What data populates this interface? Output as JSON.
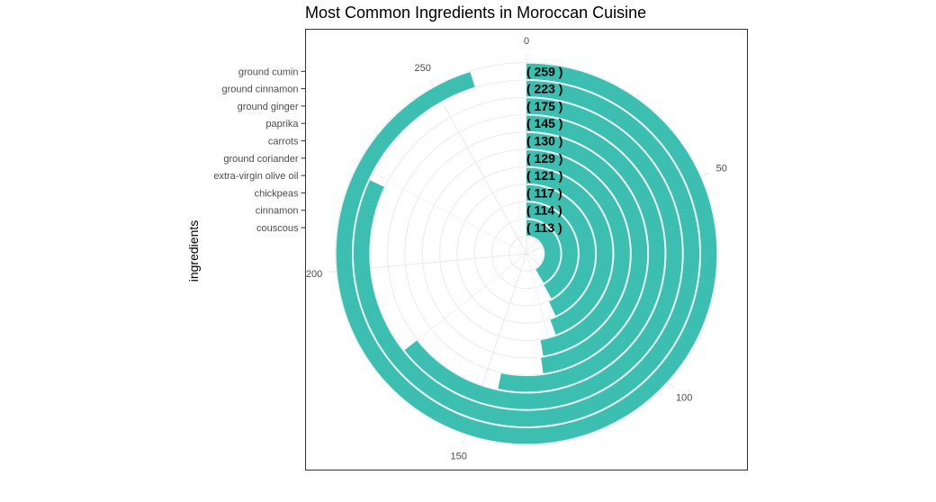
{
  "chart_data": {
    "type": "bar",
    "coord": "polar",
    "title": "Most Common Ingredients in Moroccan Cuisine",
    "xlabel": "",
    "ylabel": "ingredients",
    "categories": [
      "ground cumin",
      "ground cinnamon",
      "ground ginger",
      "paprika",
      "carrots",
      "ground coriander",
      "extra-virgin olive oil",
      "chickpeas",
      "cinnamon",
      "couscous"
    ],
    "values": [
      259,
      223,
      175,
      145,
      130,
      129,
      121,
      117,
      114,
      113
    ],
    "value_labels": [
      "( 259 )",
      "( 223 )",
      "( 175 )",
      "( 145 )",
      "( 130 )",
      "( 129 )",
      "( 121 )",
      "( 117 )",
      "( 114 )",
      "( 113 )"
    ],
    "angle_ticks": [
      0,
      50,
      100,
      150,
      200,
      250
    ],
    "angle_range": [
      0,
      272
    ],
    "grid": true,
    "legend": "none",
    "bar_color": "#3cbfb0",
    "grid_color": "#ebebeb",
    "panel_border_color": "#333333"
  }
}
